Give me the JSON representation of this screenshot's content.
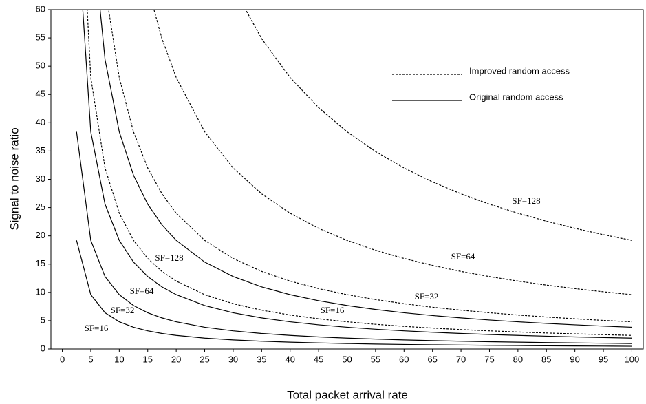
{
  "chart_data": {
    "type": "line",
    "x_label": "Total packet arrival rate",
    "y_label": "Signal to noise ratio",
    "x": [
      2.5,
      5,
      7.5,
      10,
      12.5,
      15,
      17.5,
      20,
      25,
      30,
      35,
      40,
      45,
      50,
      55,
      60,
      65,
      70,
      75,
      80,
      85,
      90,
      95,
      100
    ],
    "series": [
      {
        "name": "SF=16",
        "color": "#000000",
        "style": "solid",
        "values": [
          19.2,
          9.6,
          6.4,
          4.8,
          3.84,
          3.2,
          2.74,
          2.4,
          1.92,
          1.6,
          1.37,
          1.2,
          1.07,
          0.96,
          0.87,
          0.8,
          0.74,
          0.69,
          0.64,
          0.6,
          0.56,
          0.53,
          0.51,
          0.48
        ]
      },
      {
        "name": "SF=32",
        "color": "#000000",
        "style": "solid",
        "values": [
          38.4,
          19.2,
          12.8,
          9.6,
          7.68,
          6.4,
          5.49,
          4.8,
          3.84,
          3.2,
          2.74,
          2.4,
          2.13,
          1.92,
          1.75,
          1.6,
          1.48,
          1.37,
          1.28,
          1.2,
          1.13,
          1.07,
          1.01,
          0.96
        ]
      },
      {
        "name": "SF=64",
        "color": "#000000",
        "style": "solid",
        "values": [
          76.8,
          38.4,
          25.6,
          19.2,
          15.36,
          12.8,
          10.97,
          9.6,
          7.68,
          6.4,
          5.49,
          4.8,
          4.27,
          3.84,
          3.49,
          3.2,
          2.95,
          2.74,
          2.56,
          2.4,
          2.26,
          2.13,
          2.02,
          1.92
        ]
      },
      {
        "name": "SF=128",
        "color": "#000000",
        "style": "solid",
        "values": [
          null,
          76.8,
          51.2,
          38.4,
          30.72,
          25.6,
          21.94,
          19.2,
          15.36,
          12.8,
          10.97,
          9.6,
          8.53,
          7.68,
          6.98,
          6.4,
          5.91,
          5.49,
          5.12,
          4.8,
          4.52,
          4.27,
          4.04,
          3.84
        ]
      },
      {
        "name": "SF=16",
        "color": "#000000",
        "style": "dashed",
        "values": [
          96,
          48,
          32,
          24,
          19.2,
          16,
          13.71,
          12,
          9.6,
          8,
          6.86,
          6,
          5.33,
          4.8,
          4.36,
          4,
          3.69,
          3.43,
          3.2,
          3,
          2.82,
          2.67,
          2.53,
          2.4
        ]
      },
      {
        "name": "SF=32",
        "color": "#000000",
        "style": "dashed",
        "values": [
          null,
          null,
          64,
          48,
          38.4,
          32,
          27.43,
          24,
          19.2,
          16,
          13.71,
          12,
          10.67,
          9.6,
          8.73,
          8,
          7.38,
          6.86,
          6.4,
          6,
          5.65,
          5.33,
          5.05,
          4.8
        ]
      },
      {
        "name": "SF=64",
        "color": "#000000",
        "style": "dashed",
        "values": [
          null,
          null,
          null,
          null,
          null,
          64,
          54.86,
          48,
          38.4,
          32,
          27.43,
          24,
          21.33,
          19.2,
          17.45,
          16,
          14.77,
          13.71,
          12.8,
          12,
          11.29,
          10.67,
          10.11,
          9.6
        ]
      },
      {
        "name": "SF=128",
        "color": "#000000",
        "style": "dashed",
        "values": [
          null,
          null,
          null,
          null,
          null,
          null,
          null,
          null,
          null,
          64,
          54.86,
          48,
          42.67,
          38.4,
          34.91,
          32,
          29.54,
          27.43,
          25.6,
          24,
          22.59,
          21.33,
          20.21,
          19.2
        ]
      }
    ],
    "legend": [
      {
        "label": "Improved random access",
        "style": "dashed"
      },
      {
        "label": "Original random access",
        "style": "solid"
      }
    ],
    "xlim": [
      -2,
      102
    ],
    "ylim": [
      0,
      60
    ],
    "xticks": [
      0,
      5,
      10,
      15,
      20,
      25,
      30,
      35,
      40,
      45,
      50,
      55,
      60,
      65,
      70,
      75,
      80,
      85,
      90,
      95,
      100
    ],
    "yticks": [
      0,
      5,
      10,
      15,
      20,
      25,
      30,
      35,
      40,
      45,
      50,
      55,
      60
    ],
    "grid": false
  }
}
